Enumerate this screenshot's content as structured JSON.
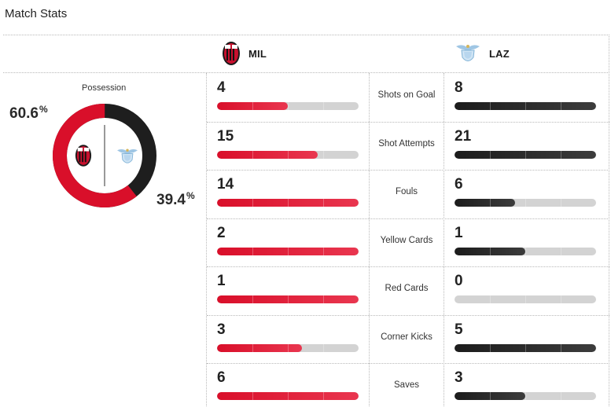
{
  "header": {
    "title": "Match Stats"
  },
  "teams": {
    "home": {
      "abbr": "MIL",
      "color": "#d90f2a",
      "crest_icon": "ac-milan-crest"
    },
    "away": {
      "abbr": "LAZ",
      "color": "#1c1c1c",
      "crest_icon": "lazio-eagle-crest"
    }
  },
  "possession": {
    "label": "Possession",
    "home_value": "60.6",
    "away_value": "39.4",
    "unit": "%",
    "home_fraction": 0.606
  },
  "stats": [
    {
      "label": "Shots on Goal",
      "home": "4",
      "away": "8",
      "home_fill": 0.5,
      "away_fill": 1.0
    },
    {
      "label": "Shot Attempts",
      "home": "15",
      "away": "21",
      "home_fill": 0.71,
      "away_fill": 1.0
    },
    {
      "label": "Fouls",
      "home": "14",
      "away": "6",
      "home_fill": 1.0,
      "away_fill": 0.43
    },
    {
      "label": "Yellow Cards",
      "home": "2",
      "away": "1",
      "home_fill": 1.0,
      "away_fill": 0.5
    },
    {
      "label": "Red Cards",
      "home": "1",
      "away": "0",
      "home_fill": 1.0,
      "away_fill": 0.0
    },
    {
      "label": "Corner Kicks",
      "home": "3",
      "away": "5",
      "home_fill": 0.6,
      "away_fill": 1.0
    },
    {
      "label": "Saves",
      "home": "6",
      "away": "3",
      "home_fill": 1.0,
      "away_fill": 0.5
    }
  ]
}
